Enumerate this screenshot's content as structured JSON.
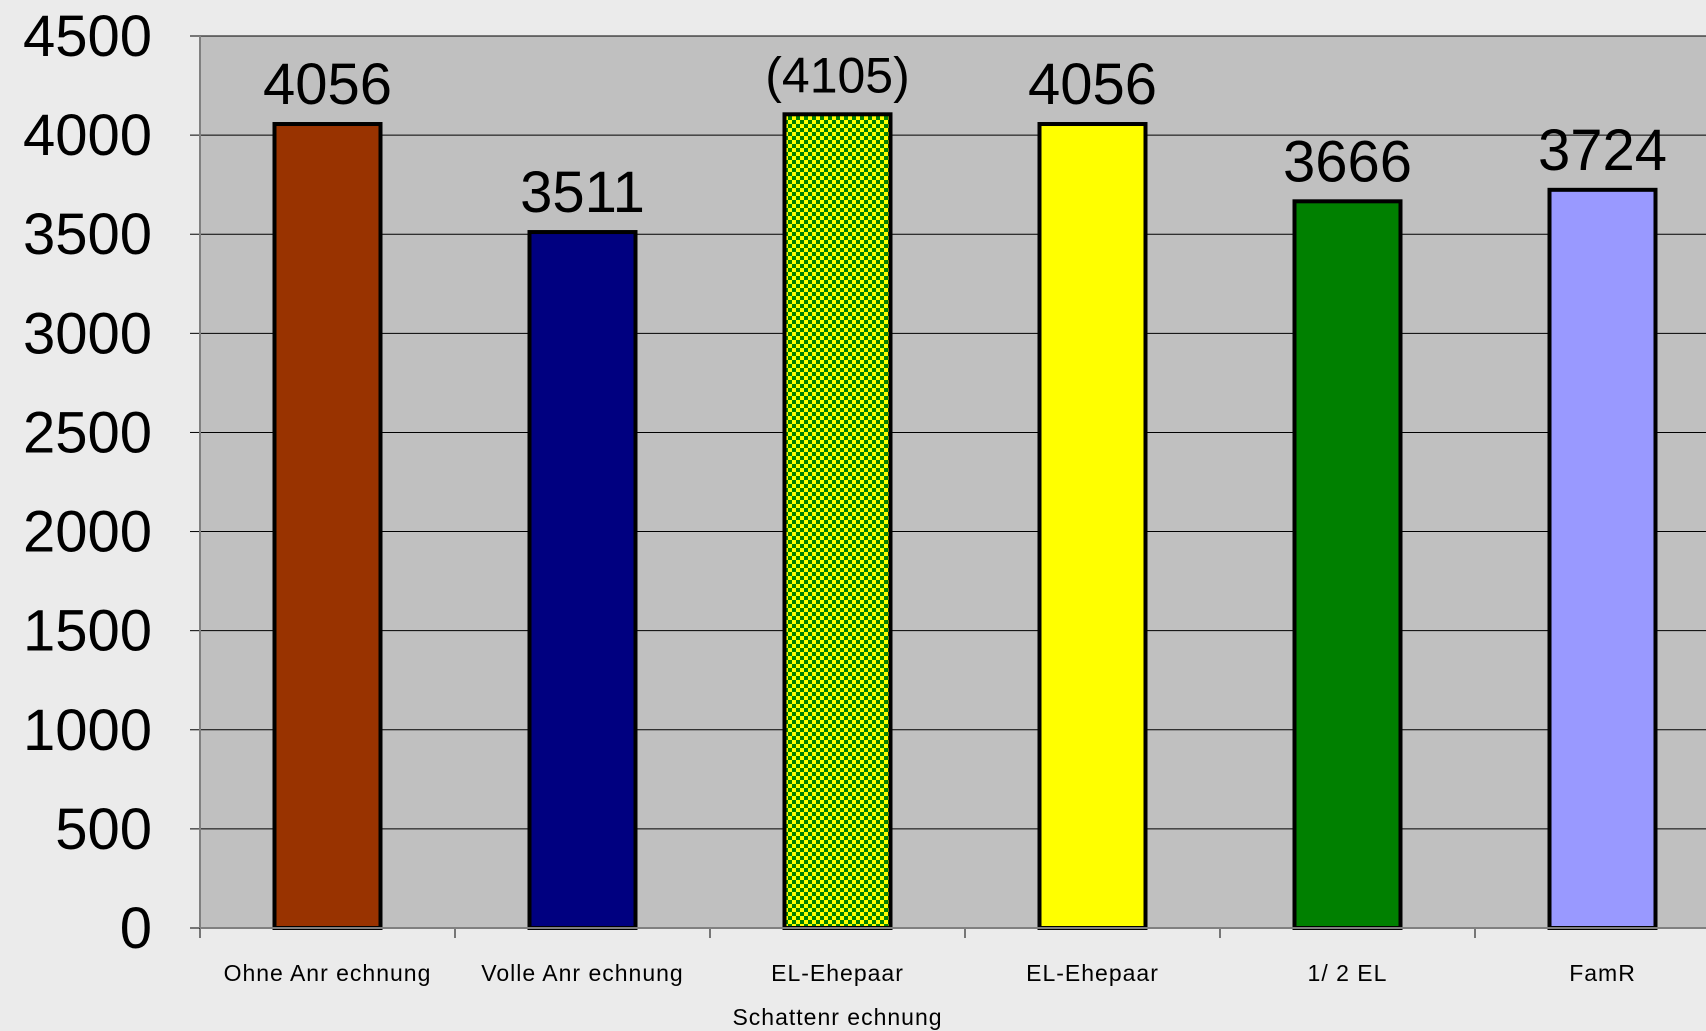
{
  "chart_data": {
    "type": "bar",
    "title": "",
    "xlabel": "",
    "ylabel": "",
    "ylim": [
      0,
      4500
    ],
    "yticks": [
      0,
      500,
      1000,
      1500,
      2000,
      2500,
      3000,
      3500,
      4000,
      4500
    ],
    "grid": true,
    "legend": "none",
    "plot_background": "#c0c0c0",
    "categories": [
      [
        "Ohne Anr echnung"
      ],
      [
        "Volle Anr echnung"
      ],
      [
        "EL-Ehepaar",
        "Schattenr echnung"
      ],
      [
        "EL-Ehepaar"
      ],
      [
        "1/ 2 EL"
      ],
      [
        "FamR"
      ]
    ],
    "values": [
      4056,
      3511,
      4105,
      4056,
      3666,
      3724
    ],
    "data_labels": [
      "4056",
      "3511",
      "(4105)",
      "4056",
      "3666",
      "3724"
    ],
    "colors": [
      "#993300",
      "#000080",
      "checker:#ffff00/#008000",
      "#ffff00",
      "#008000",
      "#9999ff"
    ]
  }
}
